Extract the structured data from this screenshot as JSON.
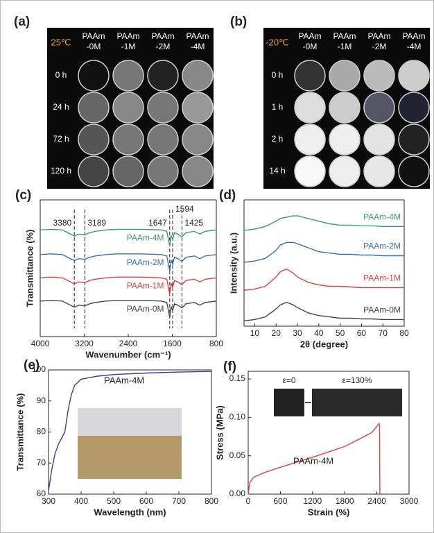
{
  "photo_panels": [
    {
      "label": "(a)",
      "temperature": "25℃",
      "columns": [
        [
          "PAAm",
          "-0M"
        ],
        [
          "PAAm",
          "-1M"
        ],
        [
          "PAAm",
          "-2M"
        ],
        [
          "PAAm",
          "-4M"
        ]
      ],
      "rows": [
        "0 h",
        "24 h",
        "72 h",
        "120 h"
      ]
    },
    {
      "label": "(b)",
      "temperature": "-20℃",
      "columns": [
        [
          "PAAm",
          "-0M"
        ],
        [
          "PAAm",
          "-1M"
        ],
        [
          "PAAm",
          "-2M"
        ],
        [
          "PAAm",
          "-4M"
        ]
      ],
      "rows": [
        "0 h",
        "1 h",
        "2 h",
        "14 h"
      ]
    }
  ],
  "chart_data": [
    {
      "type": "line",
      "label": "(c)",
      "x_label": "Wavenumber (cm⁻¹)",
      "y_label": "Transmittance (%)",
      "xlim": [
        4000,
        800
      ],
      "xticks": [
        4000,
        3200,
        2400,
        1600,
        800
      ],
      "ylim": [
        0,
        100
      ],
      "vlines": [
        3380,
        3189,
        1647,
        1594,
        1425
      ],
      "x": [
        4000,
        3800,
        3600,
        3500,
        3400,
        3380,
        3300,
        3189,
        3100,
        3000,
        2800,
        2600,
        2400,
        2200,
        2000,
        1800,
        1700,
        1647,
        1620,
        1594,
        1560,
        1500,
        1425,
        1350,
        1200,
        1100,
        1000,
        900,
        800
      ],
      "series": [
        {
          "name": "PAAm-4M",
          "color": "#3a9a6a",
          "values": [
            78,
            78.5,
            78,
            76,
            74,
            73.5,
            75,
            74.5,
            76,
            77,
            78,
            78.5,
            78.5,
            78.5,
            78.3,
            78,
            77,
            66,
            74,
            71,
            76,
            75,
            73,
            76,
            77,
            75,
            77,
            77.5,
            78
          ]
        },
        {
          "name": "PAAm-2M",
          "color": "#3a6fb0",
          "values": [
            60,
            60.5,
            60,
            58,
            56,
            55.5,
            57,
            56.5,
            58,
            59,
            60,
            60.5,
            60.5,
            60.5,
            60.3,
            60,
            59,
            48,
            56,
            53,
            58,
            57,
            55,
            58,
            59,
            57,
            59,
            59.5,
            60
          ]
        },
        {
          "name": "PAAm-1M",
          "color": "#d94040",
          "values": [
            43,
            43.5,
            43,
            41,
            39,
            38.5,
            40,
            39.5,
            41,
            42,
            43,
            43.5,
            43.5,
            43.5,
            43.3,
            43,
            42,
            31,
            39,
            36,
            41,
            40,
            38,
            41,
            42,
            40,
            42,
            42.5,
            43
          ]
        },
        {
          "name": "PAAm-0M",
          "color": "#444444",
          "values": [
            26,
            26.5,
            26,
            24,
            22,
            21.5,
            23,
            22.5,
            24,
            25,
            26,
            26.5,
            26.5,
            26.5,
            26.3,
            26,
            25,
            14,
            22,
            19,
            24,
            23,
            21,
            24,
            25,
            23,
            25,
            25.5,
            26
          ]
        }
      ]
    },
    {
      "type": "line",
      "label": "(d)",
      "x_label": "2θ (degree)",
      "y_label": "Intensity (a.u.)",
      "xlim": [
        5,
        80
      ],
      "xticks": [
        10,
        20,
        30,
        40,
        50,
        60,
        70,
        80
      ],
      "ylim": [
        0,
        95
      ],
      "x": [
        5,
        10,
        15,
        20,
        22,
        25,
        28,
        30,
        35,
        40,
        45,
        50,
        55,
        60,
        65,
        70,
        75,
        80
      ],
      "series": [
        {
          "name": "PAAm-4M",
          "color": "#3a9a6a",
          "values": [
            72,
            73,
            75,
            79,
            81,
            82,
            83,
            83,
            81,
            79,
            77,
            76,
            76,
            75.5,
            75.5,
            75,
            75,
            75
          ]
        },
        {
          "name": "PAAm-2M",
          "color": "#3a6fb0",
          "values": [
            48,
            49,
            51,
            57,
            61,
            63,
            63,
            62,
            59,
            56,
            55,
            54,
            54,
            53.5,
            53.5,
            53,
            53,
            53
          ]
        },
        {
          "name": "PAAm-1M",
          "color": "#d94040",
          "values": [
            27,
            28,
            30,
            37,
            41,
            43,
            40,
            37,
            33,
            31,
            30,
            30,
            29.5,
            29,
            29,
            29,
            29,
            29
          ]
        },
        {
          "name": "PAAm-0M",
          "color": "#444444",
          "values": [
            4,
            5,
            7,
            13,
            16,
            18,
            16,
            14,
            10,
            8,
            7,
            6,
            6,
            5.5,
            5.5,
            5,
            5,
            5
          ]
        }
      ]
    },
    {
      "type": "line",
      "label": "(e)",
      "x_label": "Wavelength (nm)",
      "y_label": "Transmittance (%)",
      "xlim": [
        300,
        800
      ],
      "xticks": [
        300,
        400,
        500,
        600,
        700,
        800
      ],
      "ylim": [
        60,
        100
      ],
      "yticks": [
        60,
        70,
        80,
        90,
        100
      ],
      "annotation": "PAAm-4M",
      "x": [
        300,
        310,
        320,
        330,
        340,
        350,
        360,
        370,
        380,
        400,
        450,
        500,
        600,
        700,
        800
      ],
      "series": [
        {
          "color": "#2f3f9a",
          "values": [
            61,
            68,
            73,
            76,
            78,
            80,
            87,
            92,
            95,
            97,
            98,
            98.5,
            99,
            99.3,
            99.5
          ]
        }
      ]
    },
    {
      "type": "line",
      "label": "(f)",
      "x_label": "Strain (%)",
      "y_label": "Stress (MPa)",
      "xlim": [
        0,
        3000
      ],
      "xticks": [
        0,
        600,
        1200,
        1800,
        2400,
        3000
      ],
      "ylim": [
        0,
        0.16
      ],
      "yticks": [
        {
          "value": 0,
          "label": "0.00"
        },
        0.05,
        {
          "value": 0.1,
          "label": "0.10"
        },
        0.15
      ],
      "annotation": "PAAm-4M",
      "inset_labels": [
        "ε=0",
        "ε=130%"
      ],
      "x": [
        0,
        30,
        100,
        300,
        600,
        1200,
        1800,
        2300,
        2400,
        2440,
        2450,
        2455
      ],
      "series": [
        {
          "color": "#d94040",
          "values": [
            0,
            0.015,
            0.022,
            0.028,
            0.035,
            0.048,
            0.062,
            0.08,
            0.088,
            0.092,
            0.09,
            0
          ]
        }
      ]
    }
  ]
}
